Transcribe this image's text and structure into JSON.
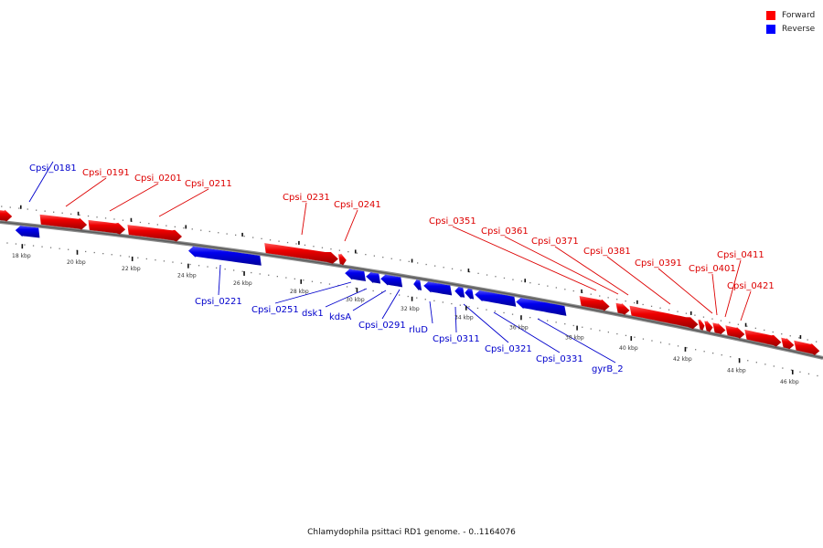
{
  "legend": [
    {
      "label": "Forward",
      "color": "#ff0000"
    },
    {
      "label": "Reverse",
      "color": "#0000ff"
    }
  ],
  "caption": "Chlamydophila psittaci RD1 genome. - 0..1164076",
  "scale": {
    "unit": "kbp",
    "labels": [
      "18 kbp",
      "20 kbp",
      "22 kbp",
      "24 kbp",
      "26 kbp",
      "28 kbp",
      "30 kbp",
      "32 kbp",
      "34 kbp",
      "36 kbp",
      "38 kbp",
      "40 kbp",
      "42 kbp",
      "44 kbp",
      "46 kbp"
    ]
  },
  "genes": [
    {
      "label": "Cpsi_0181",
      "strand": "reverse"
    },
    {
      "label": "Cpsi_0191",
      "strand": "forward"
    },
    {
      "label": "Cpsi_0201",
      "strand": "forward"
    },
    {
      "label": "Cpsi_0211",
      "strand": "forward"
    },
    {
      "label": "Cpsi_0221",
      "strand": "reverse"
    },
    {
      "label": "Cpsi_0231",
      "strand": "forward"
    },
    {
      "label": "Cpsi_0241",
      "strand": "forward"
    },
    {
      "label": "Cpsi_0251",
      "strand": "reverse"
    },
    {
      "label": "dsk1",
      "strand": "reverse"
    },
    {
      "label": "kdsA",
      "strand": "reverse"
    },
    {
      "label": "Cpsi_0291",
      "strand": "reverse"
    },
    {
      "label": "rluD",
      "strand": "reverse"
    },
    {
      "label": "Cpsi_0311",
      "strand": "reverse"
    },
    {
      "label": "Cpsi_0321",
      "strand": "reverse"
    },
    {
      "label": "Cpsi_0331",
      "strand": "reverse"
    },
    {
      "label": "gyrB_2",
      "strand": "reverse"
    },
    {
      "label": "Cpsi_0351",
      "strand": "forward"
    },
    {
      "label": "Cpsi_0361",
      "strand": "forward"
    },
    {
      "label": "Cpsi_0371",
      "strand": "forward"
    },
    {
      "label": "Cpsi_0381",
      "strand": "forward"
    },
    {
      "label": "Cpsi_0391",
      "strand": "forward"
    },
    {
      "label": "Cpsi_0401",
      "strand": "forward"
    },
    {
      "label": "Cpsi_0411",
      "strand": "forward"
    },
    {
      "label": "Cpsi_0421",
      "strand": "forward"
    }
  ]
}
